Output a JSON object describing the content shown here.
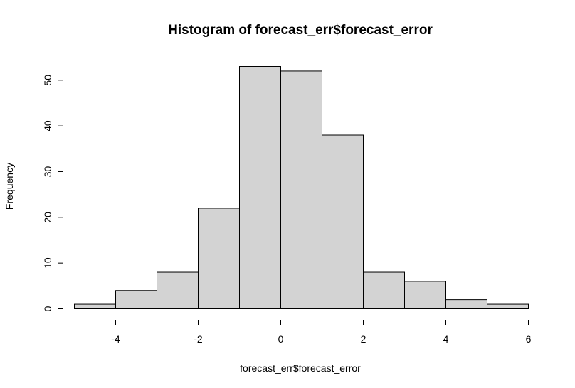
{
  "chart_data": {
    "type": "bar",
    "title": "Histogram of forecast_err$forecast_error",
    "xlabel": "forecast_err$forecast_error",
    "ylabel": "Frequency",
    "bins": [
      {
        "from": -5,
        "to": -4,
        "count": 1
      },
      {
        "from": -4,
        "to": -3,
        "count": 4
      },
      {
        "from": -3,
        "to": -2,
        "count": 8
      },
      {
        "from": -2,
        "to": -1,
        "count": 22
      },
      {
        "from": -1,
        "to": 0,
        "count": 53
      },
      {
        "from": 0,
        "to": 1,
        "count": 52
      },
      {
        "from": 1,
        "to": 2,
        "count": 38
      },
      {
        "from": 2,
        "to": 3,
        "count": 8
      },
      {
        "from": 3,
        "to": 4,
        "count": 6
      },
      {
        "from": 4,
        "to": 5,
        "count": 2
      },
      {
        "from": 5,
        "to": 6,
        "count": 1
      }
    ],
    "xticks": [
      -4,
      -2,
      0,
      2,
      4,
      6
    ],
    "yticks": [
      0,
      10,
      20,
      30,
      40,
      50
    ],
    "xlim": [
      -5,
      6
    ],
    "ylim": [
      0,
      53
    ],
    "bar_color": "#d3d3d3",
    "grid": false,
    "legend": "none"
  }
}
